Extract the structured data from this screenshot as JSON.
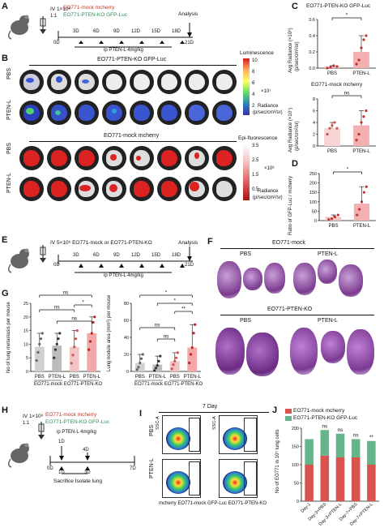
{
  "panels": {
    "A": "A",
    "B": "B",
    "C": "C",
    "D": "D",
    "E": "E",
    "F": "F",
    "G": "G",
    "H": "H",
    "I": "I",
    "J": "J"
  },
  "panelA": {
    "injection": "IV 1×10⁶",
    "ratio": "1:1",
    "line1": "EO771-mock mcherry",
    "line2": "EO771-PTEN-KO GFP-Luc",
    "analysis": "Analysis",
    "days": [
      "3D",
      "6D",
      "9D",
      "12D",
      "15D",
      "18D"
    ],
    "start": "0D",
    "end": "21D",
    "treatment": "ip PTEN-L 4mg/kg"
  },
  "panelB": {
    "title_top": "EO771-PTEN-KO GFP-Luc",
    "title_bottom": "EO771-mock mcherry",
    "row_labels": [
      "PBS",
      "PTEN-L",
      "PBS",
      "PTEN-L"
    ],
    "scale1_title": "Luminescence",
    "scale1_max": "10",
    "scale1_mid": "8",
    "scale1_low1": "6",
    "scale1_low2": "4",
    "scale1_low3": "2",
    "scale1_exp": "×10⁷",
    "scale1_unit1": "Radiance",
    "scale1_unit2": "(p/sec/cm²/sr)",
    "scale2_title": "Epi-fluorescence",
    "scale2_max": "3.5",
    "scale2_mid": "2.5",
    "scale2_low1": "1.5",
    "scale2_low2": "0.5",
    "scale2_exp": "×10⁸",
    "scale2_unit1": "Radiance",
    "scale2_unit2": "(p/sec/cm²/sr)"
  },
  "panelC": {
    "title1": "EO771-PTEN-KO GFP-Luc",
    "title2": "EO771-mock mcherry",
    "ylabel1": "Avg Radiance (×10⁸)",
    "ylabel1b": "(p/sec/cm²/sr)",
    "ylabel2": "Avg Radiance (×10⁷)",
    "ylabel2b": "(p/sec/cm²/sr)",
    "sig1": "*",
    "sig2": "ns",
    "xcats": [
      "PBS",
      "PTEN-L"
    ]
  },
  "panelD": {
    "ylabel": "Ratio of GFP-Luc / mcherry",
    "sig": "*",
    "xcats": [
      "PBS",
      "PTEN-L"
    ]
  },
  "panelE": {
    "injection": "IV 5×10⁶ EO771-mock or EO771-PTEN-KO",
    "analysis": "Analysis",
    "days": [
      "3D",
      "6D",
      "9D",
      "12D",
      "15D",
      "18D"
    ],
    "start": "0D",
    "end": "21D",
    "treatment": "ip PTEN-L 4mg/kg"
  },
  "panelF": {
    "title1": "EO771-mock",
    "title2": "EO771-PTEN-KO",
    "pbs": "PBS",
    "ptenl": "PTEN-L"
  },
  "panelG": {
    "ylabel1": "No of lung metastasis per mouse",
    "ylabel2": "Lung nodule area (mm²) per mouse",
    "xcats": [
      "PBS",
      "PTEN-L",
      "PBS",
      "PTEN-L"
    ],
    "group1": "EO771-mock",
    "group2": "EO771-PTEN-KO",
    "sig_ns": "ns",
    "sig_star": "*",
    "sig_dstar": "**"
  },
  "panelH": {
    "injection": "IV 1×10⁶",
    "ratio": "1:1",
    "line1": "EO771-mock mcherry",
    "line2": "EO771-PTEN-KO GFP-Luc",
    "treatment": "ip PTEN-L 4mg/kg",
    "t0": "0D",
    "t1": "1D",
    "t3": "3D",
    "t4": "4D",
    "t7": "7D",
    "sacrifice": "Sacrifice Isolate lung"
  },
  "panelI": {
    "title": "7 Day",
    "rows": [
      "PBS",
      "PTEN-L"
    ],
    "ssca": "SSC-A",
    "xlabel1": "mcherry EO771-mock",
    "xlabel2": "GFP-Luc EO771-PTEN-KO"
  },
  "panelJ": {
    "legend1": "EO771-mock mcherry",
    "legend2": "EO771-PTEN-KO GFP-Luc",
    "ylabel": "No of EO771 in 10⁵ lung cells",
    "sigs": [
      "ns",
      "ns",
      "ns",
      "**"
    ],
    "colors": {
      "mock": "#d9534f",
      "ko": "#66b58a"
    }
  },
  "chart_data": [
    {
      "type": "bar",
      "panel": "C-top",
      "categories": [
        "PBS",
        "PTEN-L"
      ],
      "values": [
        0.02,
        0.2
      ],
      "ylim": [
        0,
        0.6
      ],
      "yticks": [
        "0.0",
        "0.2",
        "0.4",
        "0.6"
      ],
      "points": [
        [
          0.0,
          0.01,
          0.03,
          0.02
        ],
        [
          0.05,
          0.1,
          0.25,
          0.35,
          0.4
        ]
      ]
    },
    {
      "type": "bar",
      "panel": "C-bottom",
      "categories": [
        "PBS",
        "PTEN-L"
      ],
      "values": [
        3,
        3.5
      ],
      "ylim": [
        0,
        8
      ],
      "yticks": [
        "0",
        "2",
        "4",
        "6",
        "8"
      ],
      "points": [
        [
          2,
          3,
          3.5,
          4,
          3
        ],
        [
          1,
          2,
          4,
          5,
          6
        ]
      ]
    },
    {
      "type": "bar",
      "panel": "D",
      "categories": [
        "PBS",
        "PTEN-L"
      ],
      "values": [
        20,
        90
      ],
      "ylim": [
        0,
        250
      ],
      "yticks": [
        "0",
        "50",
        "100",
        "150",
        "200",
        "250"
      ],
      "points": [
        [
          5,
          10,
          20,
          30
        ],
        [
          30,
          60,
          100,
          150,
          180
        ]
      ]
    },
    {
      "type": "bar",
      "panel": "G-left",
      "categories": [
        "PBS",
        "PTEN-L",
        "PBS",
        "PTEN-L"
      ],
      "values": [
        9,
        9.5,
        9,
        14
      ],
      "ylim": [
        0,
        25
      ],
      "yticks": [
        "0",
        "5",
        "10",
        "15",
        "20",
        "25"
      ],
      "points": [
        [
          4,
          7,
          10,
          12,
          14
        ],
        [
          5,
          8,
          10,
          12,
          14
        ],
        [
          3,
          6,
          9,
          12,
          15
        ],
        [
          8,
          11,
          14,
          18,
          20
        ]
      ]
    },
    {
      "type": "bar",
      "panel": "G-right",
      "categories": [
        "PBS",
        "PTEN-L",
        "PBS",
        "PTEN-L"
      ],
      "values": [
        10,
        8,
        12,
        28
      ],
      "ylim": [
        0,
        80
      ],
      "yticks": [
        "0",
        "20",
        "40",
        "60",
        "80"
      ],
      "points": [
        [
          2,
          5,
          10,
          15,
          20
        ],
        [
          1,
          4,
          7,
          12,
          18
        ],
        [
          3,
          8,
          12,
          16,
          22
        ],
        [
          10,
          20,
          28,
          45,
          55
        ]
      ]
    },
    {
      "type": "bar",
      "panel": "J",
      "stacked": true,
      "categories": [
        "Day-1",
        "Day-3+PBS",
        "Day-3+PTEN-L",
        "Day-7+PBS",
        "Day-7+PTEN-L"
      ],
      "ylim": [
        0,
        200
      ],
      "yticks": [
        "0",
        "50",
        "100",
        "150",
        "200"
      ],
      "series": [
        {
          "name": "EO771-mock mcherry",
          "values": [
            100,
            125,
            120,
            120,
            100
          ]
        },
        {
          "name": "EO771-PTEN-KO GFP-Luc",
          "values": [
            70,
            70,
            65,
            50,
            65
          ]
        }
      ]
    }
  ]
}
